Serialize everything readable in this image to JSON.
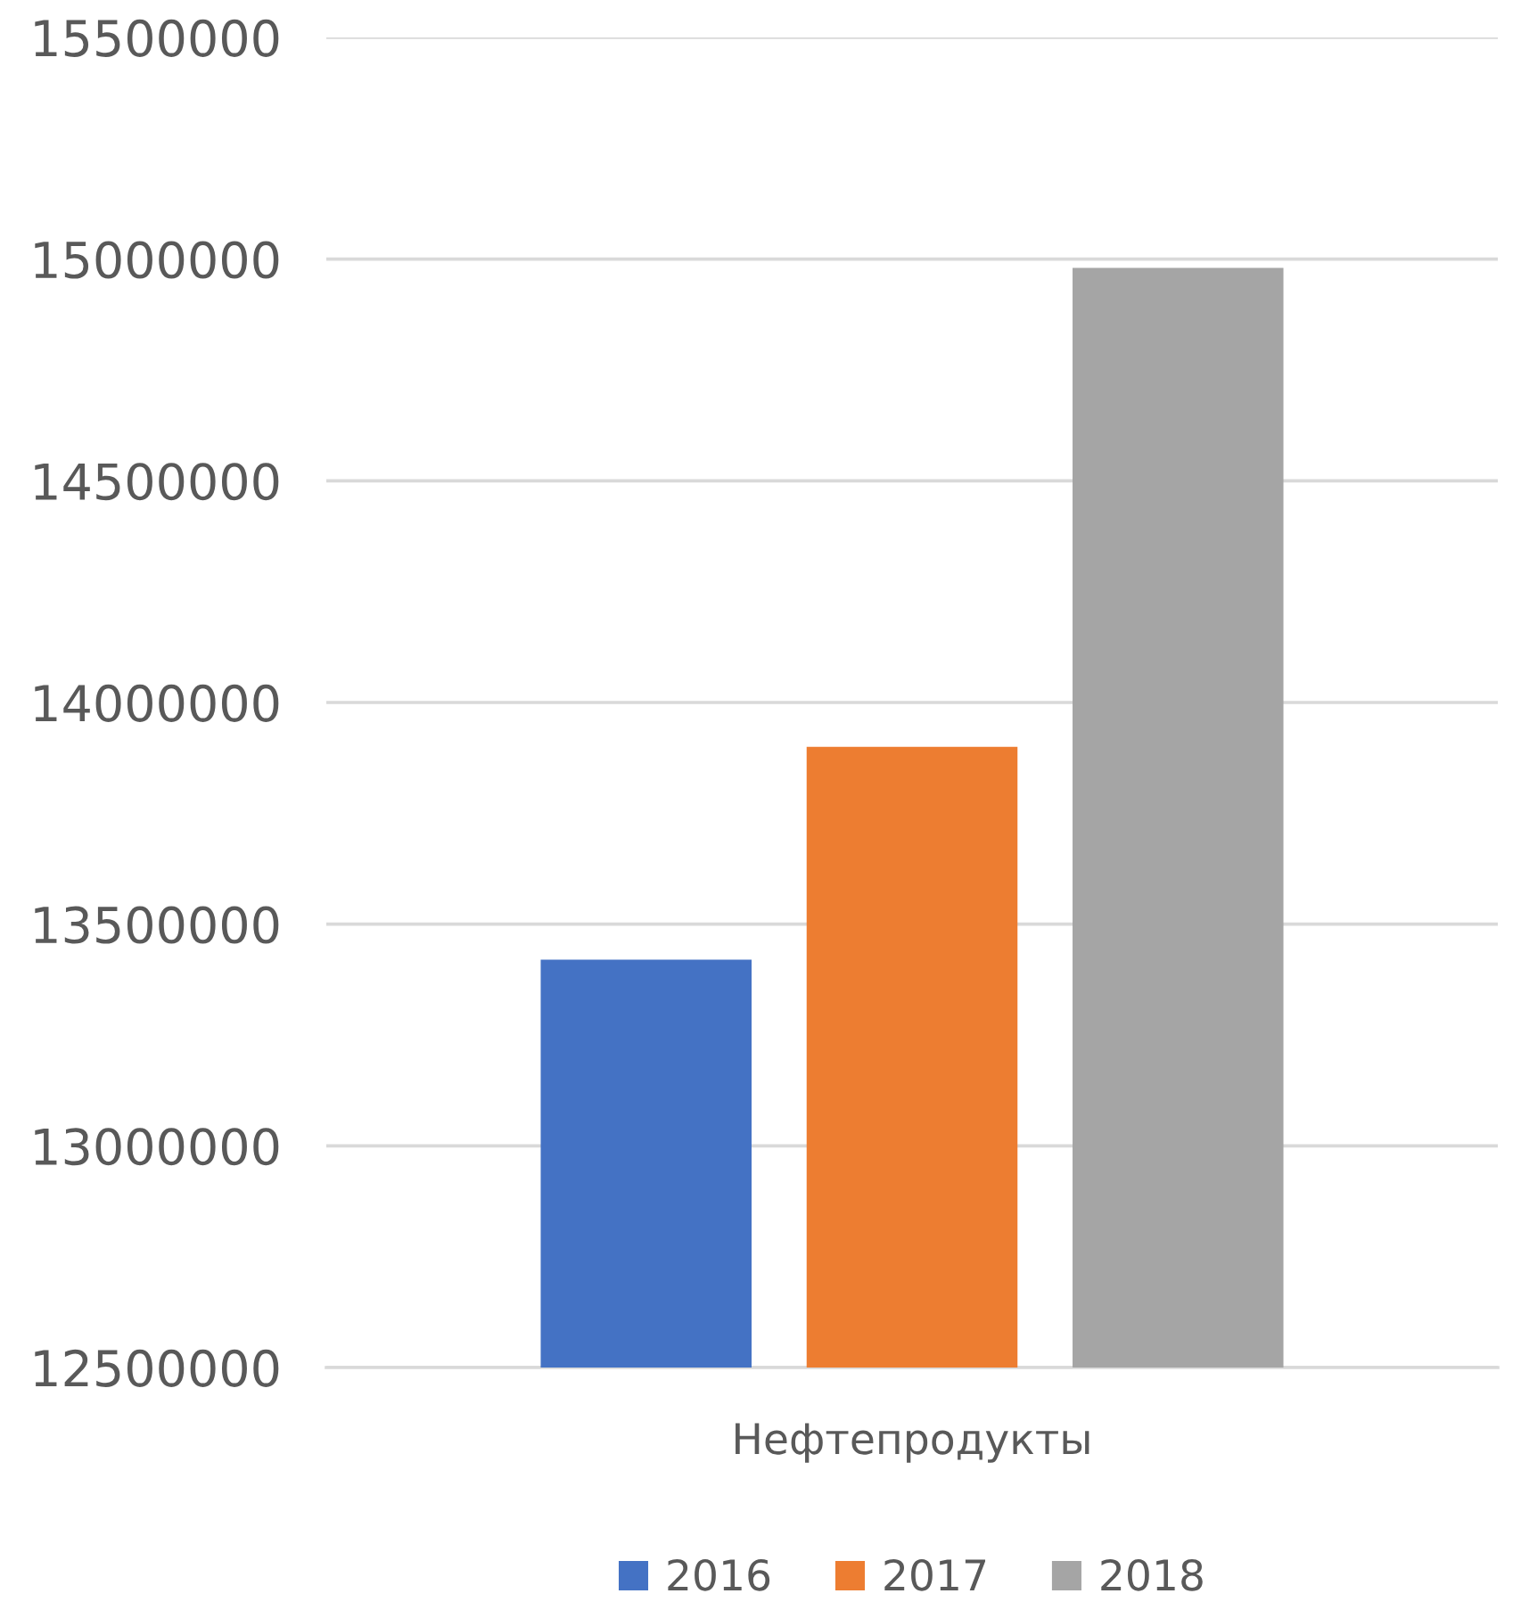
{
  "chart_data": {
    "type": "bar",
    "categories": [
      "Нефтепродукты"
    ],
    "series": [
      {
        "name": "2016",
        "color": "#4472c4",
        "values": [
          13420000
        ]
      },
      {
        "name": "2017",
        "color": "#ed7d31",
        "values": [
          13900000
        ]
      },
      {
        "name": "2018",
        "color": "#a5a5a5",
        "values": [
          14980000
        ]
      }
    ],
    "ylim": [
      12500000,
      15500000
    ],
    "yticks": [
      12500000,
      13000000,
      13500000,
      14000000,
      14500000,
      15000000,
      15500000
    ],
    "grid": "y",
    "legend": "bottom"
  }
}
